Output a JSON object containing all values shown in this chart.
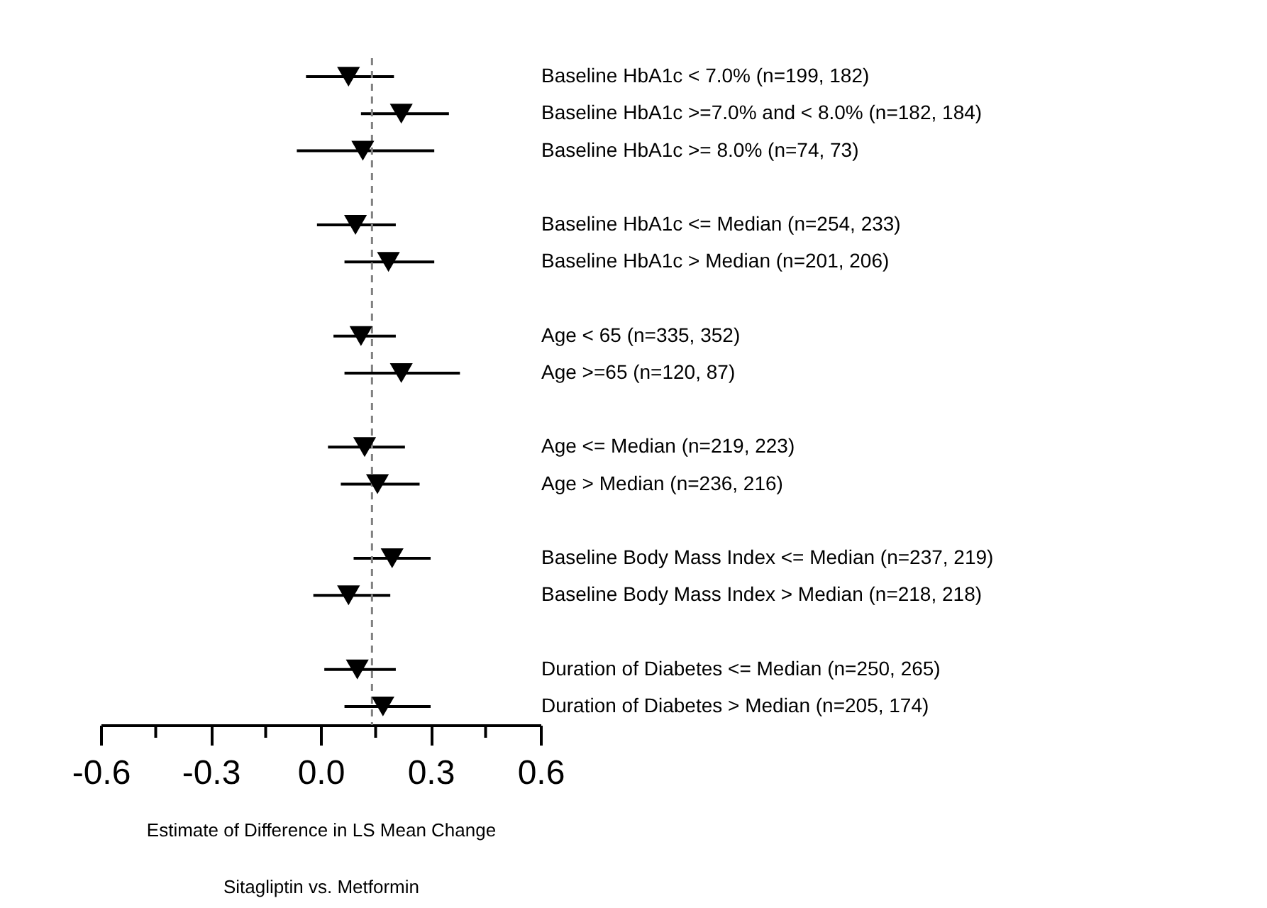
{
  "chart_data": {
    "type": "scatter",
    "orientation": "horizontal",
    "categories": [
      "Baseline HbA1c < 7.0% (n=199, 182)",
      "Baseline HbA1c >=7.0% and < 8.0% (n=182, 184)",
      "Baseline HbA1c >= 8.0% (n=74, 73)",
      null,
      "Baseline HbA1c <= Median (n=254, 233)",
      "Baseline HbA1c > Median (n=201, 206)",
      null,
      "Age < 65 (n=335, 352)",
      "Age >=65 (n=120, 87)",
      null,
      "Age <= Median (n=219, 223)",
      "Age > Median (n=236, 216)",
      null,
      "Baseline Body Mass Index <= Median (n=237, 219)",
      "Baseline Body Mass Index > Median (n=218, 218)",
      null,
      "Duration of Diabetes <= Median (n=250, 265)",
      "Duration of Diabetes > Median (n=205, 174)"
    ],
    "values": [
      0.076,
      0.22,
      0.115,
      null,
      0.095,
      0.185,
      null,
      0.11,
      0.22,
      null,
      0.12,
      0.155,
      null,
      0.195,
      0.076,
      null,
      0.1,
      0.17
    ],
    "errors": [
      [
        -0.04,
        0.2
      ],
      [
        0.11,
        0.35
      ],
      [
        -0.065,
        0.31
      ],
      null,
      [
        -0.01,
        0.205
      ],
      [
        0.065,
        0.31
      ],
      null,
      [
        0.035,
        0.205
      ],
      [
        0.065,
        0.38
      ],
      null,
      [
        0.02,
        0.23
      ],
      [
        0.055,
        0.27
      ],
      null,
      [
        0.09,
        0.3
      ],
      [
        -0.02,
        0.19
      ],
      null,
      [
        0.01,
        0.205
      ],
      [
        0.065,
        0.3
      ]
    ],
    "color": "#000000",
    "marker": "triangle",
    "xlim": [
      -0.6,
      0.6
    ],
    "xticks": [
      -0.6,
      {
        "value": -0.45,
        "label": null
      },
      -0.3,
      {
        "value": -0.15,
        "label": null
      },
      {
        "value": 0.0,
        "label": "0.0"
      },
      {
        "value": 0.15,
        "label": null
      },
      0.3,
      {
        "value": 0.45,
        "label": null
      },
      0.6
    ],
    "ref_lines": [
      {
        "axis": "x",
        "value": 0.14,
        "color": "#808080",
        "line_style": "dashed"
      }
    ],
    "xlabel": "Estimate of Difference in LS Mean Change\nSitagliptin vs. Metformin",
    "grid": false
  }
}
